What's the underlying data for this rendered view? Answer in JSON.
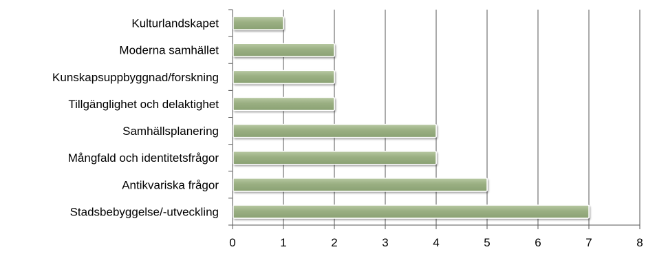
{
  "chart_data": {
    "type": "bar",
    "orientation": "horizontal",
    "title": "",
    "xlabel": "",
    "ylabel": "",
    "categories": [
      "Kulturlandskapet",
      "Moderna samhället",
      "Kunskapsuppbyggnad/forskning",
      "Tillgänglighet och delaktighet",
      "Samhällsplanering",
      "Mångfald och identitetsfrågor",
      "Antikvariska frågor",
      "Stadsbebyggelse/-utveckling"
    ],
    "values": [
      1,
      2,
      2,
      2,
      4,
      4,
      5,
      7
    ],
    "xlim": [
      0,
      8
    ],
    "xticks": [
      "0",
      "1",
      "2",
      "3",
      "4",
      "5",
      "6",
      "7",
      "8"
    ],
    "grid": "vertical",
    "legend": "none",
    "colors": {
      "bar_fill": "#9aaf82",
      "bar_stroke": "#ffffff",
      "grid": "#555555",
      "axis": "#555555"
    }
  }
}
